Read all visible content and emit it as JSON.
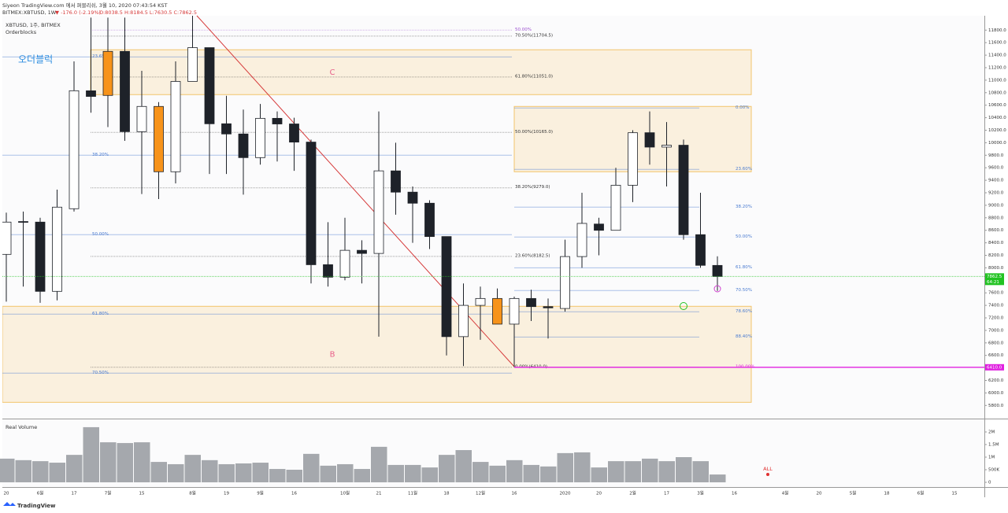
{
  "header": {
    "published": "Siyeon TradingView.com 에서 퍼블리쉬, 3월 10, 2020 07:43:54 KST",
    "symbol": "BITMEX:XBTUSD, 1W",
    "change": "▼ -176.0 (-2.19%)",
    "ohlc": "O:8038.5 H:8184.5 L:7630.5 C:7862.5",
    "pane_title": "XBTUSD, 1주, BITMEX",
    "indicator": "Orderblocks",
    "annotation": "오더블럭",
    "volume_title": "Real Volume",
    "brand": "TradingView",
    "alert": "ALL"
  },
  "chart_data": {
    "type": "candlestick",
    "categories": [
      "20",
      null,
      "6월",
      null,
      "17",
      null,
      "7월",
      null,
      "15",
      null,
      null,
      "8월",
      null,
      "19",
      null,
      "9월",
      null,
      "16",
      null,
      null,
      "10월",
      null,
      "21",
      null,
      "11월",
      null,
      "18",
      null,
      "12월",
      null,
      "16",
      null,
      null,
      "2020",
      null,
      "20",
      null,
      "2월",
      null,
      "17",
      null,
      "3월",
      null,
      "16",
      null,
      null,
      "4월",
      null,
      "20",
      null,
      "5월",
      null,
      "18",
      null,
      "6월",
      null,
      "15"
    ],
    "open": [
      8215,
      8740,
      8731,
      7624,
      8945,
      10830,
      11460,
      11460,
      10177,
      10580,
      9536,
      10980,
      11520,
      10303,
      10140,
      9762,
      10390,
      10300,
      10010,
      8050,
      7850,
      8280,
      8230,
      9550,
      9210,
      9033,
      8500,
      6900,
      7400,
      7510,
      7100,
      7510,
      7380,
      7350,
      8180,
      8700,
      8600,
      9320,
      10160,
      9930,
      9960,
      8530,
      8038.5,
      null,
      null,
      null,
      null,
      null,
      null,
      null,
      null,
      null,
      null,
      null,
      null,
      null,
      null
    ],
    "high": [
      8882,
      8900,
      8800,
      9250,
      11300,
      12000,
      12000,
      12000,
      11150,
      10650,
      11300,
      12100,
      11520,
      10750,
      10530,
      10620,
      10500,
      10400,
      10050,
      8730,
      8800,
      8440,
      10500,
      10000,
      9300,
      9080,
      8500,
      7750,
      7700,
      7670,
      7540,
      7650,
      7510,
      8450,
      9200,
      8800,
      9600,
      10200,
      10500,
      10330,
      10050,
      9200,
      8184.5,
      null,
      null,
      null,
      null,
      null,
      null,
      null,
      null,
      null,
      null,
      null,
      null,
      null,
      null
    ],
    "low": [
      7460,
      7700,
      7440,
      7480,
      8900,
      10480,
      10250,
      10030,
      9180,
      9100,
      9350,
      10980,
      9500,
      9500,
      9170,
      9650,
      9700,
      9550,
      7750,
      7700,
      7800,
      7750,
      6900,
      8850,
      8400,
      8300,
      6600,
      6430,
      6850,
      7100,
      6410,
      7150,
      6870,
      7300,
      8000,
      8200,
      8600,
      9050,
      9650,
      9300,
      8450,
      8000,
      7630.5,
      null,
      null,
      null,
      null,
      null,
      null,
      null,
      null,
      null,
      null,
      null,
      null,
      null,
      null
    ],
    "close": [
      8731,
      8730,
      7624,
      8970,
      10831,
      10740,
      10756,
      10177,
      10580,
      9536,
      10980,
      11520,
      10303,
      10140,
      9762,
      10390,
      10300,
      10010,
      8050,
      7850,
      8280,
      8230,
      9550,
      9210,
      9033,
      8500,
      6900,
      7400,
      7510,
      7100,
      7510,
      7380,
      7360,
      8180,
      8710,
      8600,
      9320,
      10160,
      9930,
      9960,
      8530,
      8040,
      7862.5,
      null,
      null,
      null,
      null,
      null,
      null,
      null,
      null,
      null,
      null,
      null,
      null,
      null,
      null
    ],
    "volume": [
      940000,
      880000,
      840000,
      780000,
      1090000,
      2190000,
      1590000,
      1560000,
      1590000,
      810000,
      720000,
      1090000,
      880000,
      720000,
      750000,
      780000,
      530000,
      500000,
      1130000,
      660000,
      720000,
      530000,
      1410000,
      690000,
      690000,
      590000,
      1090000,
      1280000,
      810000,
      660000,
      880000,
      690000,
      630000,
      1160000,
      1190000,
      590000,
      840000,
      840000,
      940000,
      840000,
      1000000,
      840000,
      310000,
      null,
      null,
      null,
      null,
      null,
      null,
      null,
      null,
      null,
      null,
      null,
      null,
      null,
      null
    ],
    "up_color": "#ffffff",
    "down_color": "#1e2229",
    "orderblock_color": "#f7931a",
    "orderblock_candles": [
      6,
      9,
      29
    ],
    "volume_color": "#a5a8ad",
    "ylim": [
      5590,
      12030
    ],
    "yticks": [
      {
        "value": 11800,
        "label": "11800.0"
      },
      {
        "value": 11600,
        "label": "11600.0"
      },
      {
        "value": 11400,
        "label": "11400.0"
      },
      {
        "value": 11200,
        "label": "11200.0"
      },
      {
        "value": 11000,
        "label": "11000.0"
      },
      {
        "value": 10800,
        "label": "10800.0"
      },
      {
        "value": 10600,
        "label": "10600.0"
      },
      {
        "value": 10400,
        "label": "10400.0"
      },
      {
        "value": 10200,
        "label": "10200.0"
      },
      {
        "value": 10000,
        "label": "10000.0"
      },
      {
        "value": 9800,
        "label": "9800.0"
      },
      {
        "value": 9600,
        "label": "9600.0"
      },
      {
        "value": 9400,
        "label": "9400.0"
      },
      {
        "value": 9200,
        "label": "9200.0"
      },
      {
        "value": 9000,
        "label": "9000.0"
      },
      {
        "value": 8800,
        "label": "8800.0"
      },
      {
        "value": 8600,
        "label": "8600.0"
      },
      {
        "value": 8400,
        "label": "8400.0"
      },
      {
        "value": 8200,
        "label": "8200.0"
      },
      {
        "value": 8000,
        "label": "8000.0"
      },
      {
        "value": 7800,
        "label": "7800.0"
      },
      {
        "value": 7600,
        "label": "7600.0"
      },
      {
        "value": 7400,
        "label": "7400.0"
      },
      {
        "value": 7200,
        "label": "7200.0"
      },
      {
        "value": 7000,
        "label": "7000.0"
      },
      {
        "value": 6800,
        "label": "6800.0"
      },
      {
        "value": 6600,
        "label": "6600.0"
      },
      {
        "value": 6400,
        "label": "6400.0"
      },
      {
        "value": 6200,
        "label": "6200.0"
      },
      {
        "value": 6000,
        "label": "6000.0"
      },
      {
        "value": 5800,
        "label": "5800.0"
      }
    ],
    "volume_ylim": [
      0,
      2500000
    ],
    "volume_ticks": [
      {
        "value": 2000000,
        "label": "2M"
      },
      {
        "value": 1500000,
        "label": "1.5M"
      },
      {
        "value": 1000000,
        "label": "1M"
      },
      {
        "value": 500000,
        "label": "500K"
      },
      0
    ],
    "last_price": {
      "value": 7862.5,
      "countdown": "64:21",
      "color": "#22c322"
    },
    "level_label": {
      "value": 6410,
      "label": "6410.0",
      "color": "#e020e0"
    },
    "zones": [
      {
        "label": "C",
        "top": 11486,
        "bottom": 10769
      },
      {
        "label": "B",
        "top": 7385,
        "bottom": 5850
      },
      {
        "top": 10580,
        "bottom": 9536
      }
    ],
    "fib_sets": [
      {
        "color": "#4a7bd0",
        "levels": [
          {
            "label": "23.6%",
            "price": 11372
          },
          {
            "label": "38.20%",
            "price": 9800
          },
          {
            "label": "50.00%",
            "price": 8530
          },
          {
            "label": "61.80%",
            "price": 7259
          },
          {
            "label": "70.50%",
            "price": 6316
          }
        ]
      },
      {
        "color": "#333333",
        "levels": [
          {
            "label": "50.00%",
            "price": 11800,
            "color": "#9c4fd0"
          },
          {
            "label": "70.50%(11704.5)",
            "price": 11704.5
          },
          {
            "label": "61.80%(11051.0)",
            "price": 11051
          },
          {
            "label": "50.00%(10165.0)",
            "price": 10165
          },
          {
            "label": "38.20%(9279.0)",
            "price": 9279
          },
          {
            "label": "23.60%(8182.5)",
            "price": 8182.5
          },
          {
            "label": "0.00%(6410.0)",
            "price": 6410
          }
        ]
      },
      {
        "color": "#4a7bd0",
        "levels": [
          {
            "label": "0.00%",
            "price": 10555
          },
          {
            "label": "23.60%",
            "price": 9574
          },
          {
            "label": "38.20%",
            "price": 8970
          },
          {
            "label": "50.00%",
            "price": 8492
          },
          {
            "label": "61.80%",
            "price": 8001
          },
          {
            "label": "70.50%",
            "price": 7637
          },
          {
            "label": "78.60%",
            "price": 7297
          },
          {
            "label": "88.40%",
            "price": 6894
          },
          {
            "label": "100.00%",
            "price": 6410,
            "color": "#e020e0"
          }
        ]
      }
    ]
  }
}
